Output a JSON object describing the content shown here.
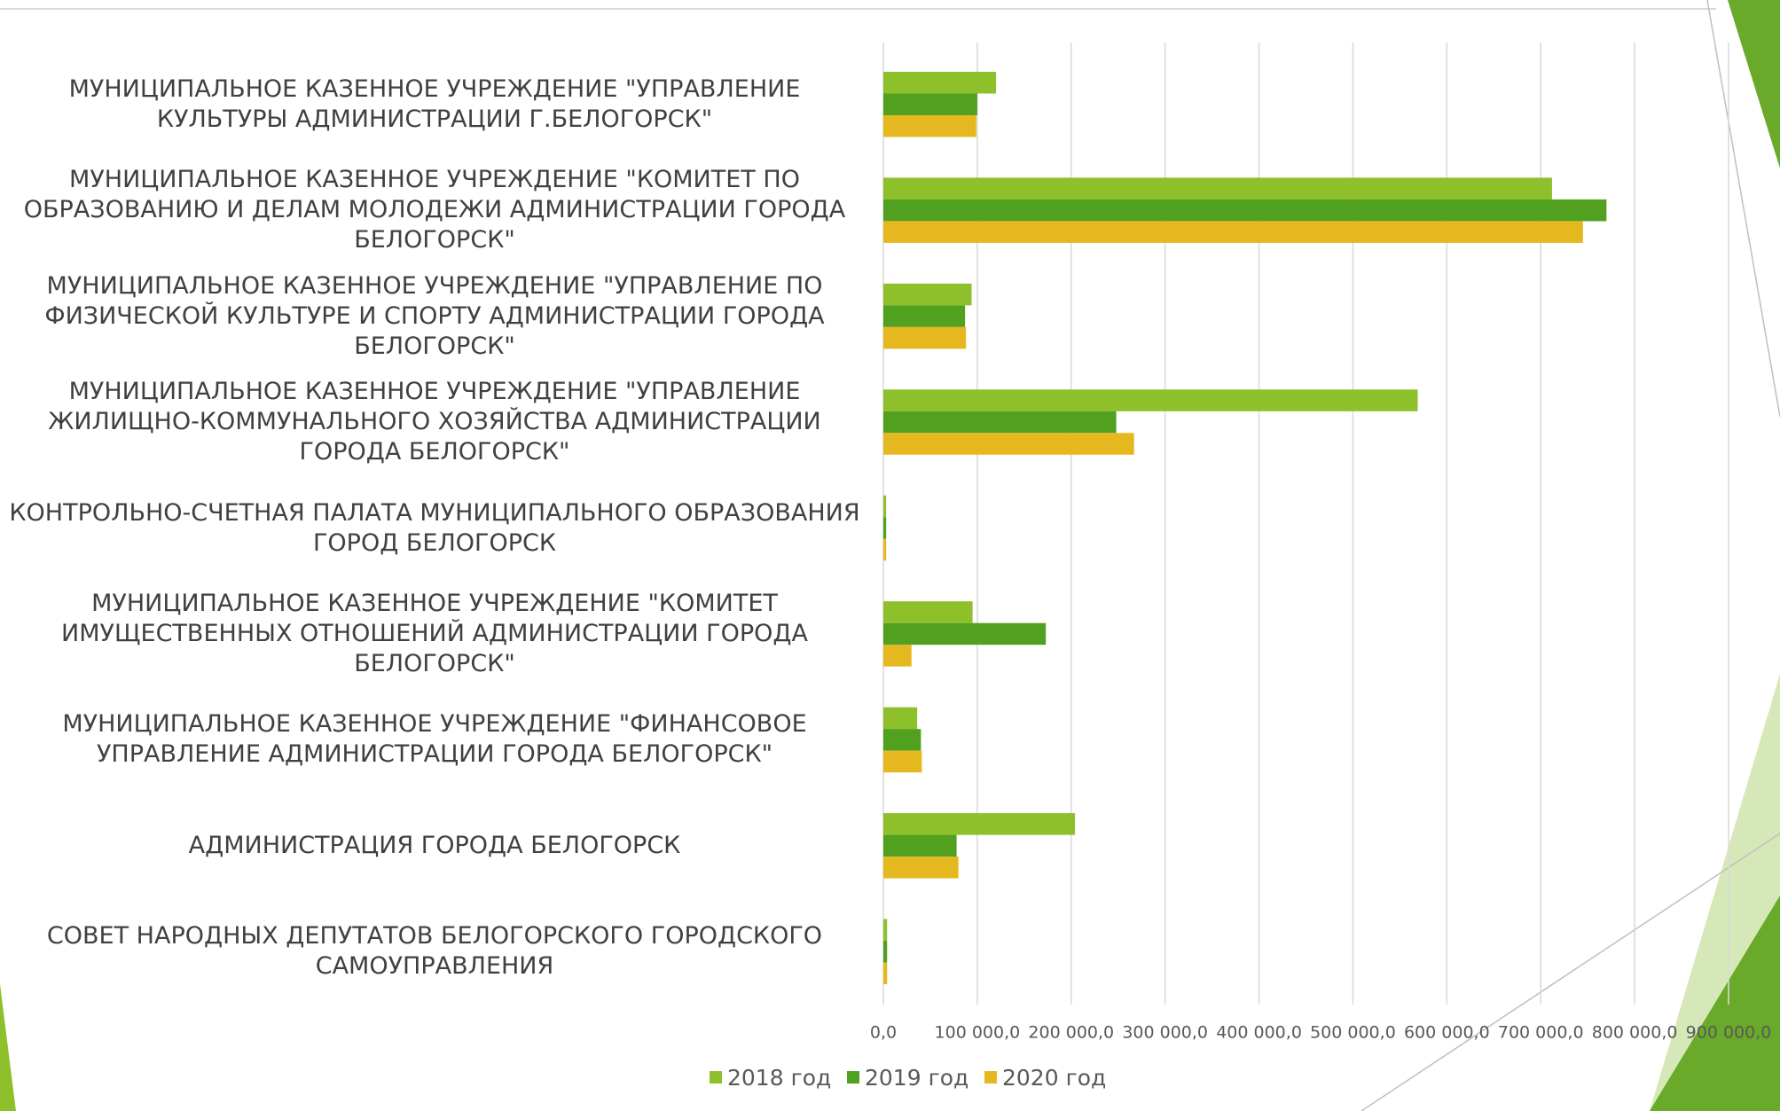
{
  "chart_data": {
    "type": "hbar",
    "categories": [
      "МУНИЦИПАЛЬНОЕ КАЗЕННОЕ УЧРЕЖДЕНИЕ \"УПРАВЛЕНИЕ КУЛЬТУРЫ АДМИНИСТРАЦИИ Г.БЕЛОГОРСК\"",
      "МУНИЦИПАЛЬНОЕ КАЗЕННОЕ УЧРЕЖДЕНИЕ \"КОМИТЕТ ПО ОБРАЗОВАНИЮ И ДЕЛАМ МОЛОДЕЖИ АДМИНИСТРАЦИИ ГОРОДА БЕЛОГОРСК\"",
      "МУНИЦИПАЛЬНОЕ КАЗЕННОЕ УЧРЕЖДЕНИЕ \"УПРАВЛЕНИЕ ПО ФИЗИЧЕСКОЙ КУЛЬТУРЕ И СПОРТУ  АДМИНИСТРАЦИИ ГОРОДА БЕЛОГОРСК\"",
      "МУНИЦИПАЛЬНОЕ КАЗЕННОЕ УЧРЕЖДЕНИЕ \"УПРАВЛЕНИЕ ЖИЛИЩНО-КОММУНАЛЬНОГО ХОЗЯЙСТВА АДМИНИСТРАЦИИ ГОРОДА БЕЛОГОРСК\"",
      "КОНТРОЛЬНО-СЧЕТНАЯ ПАЛАТА МУНИЦИПАЛЬНОГО ОБРАЗОВАНИЯ ГОРОД БЕЛОГОРСК",
      "МУНИЦИПАЛЬНОЕ КАЗЕННОЕ УЧРЕЖДЕНИЕ \"КОМИТЕТ ИМУЩЕСТВЕННЫХ ОТНОШЕНИЙ АДМИНИСТРАЦИИ ГОРОДА БЕЛОГОРСК\"",
      "МУНИЦИПАЛЬНОЕ КАЗЕННОЕ УЧРЕЖДЕНИЕ \"ФИНАНСОВОЕ УПРАВЛЕНИЕ АДМИНИСТРАЦИИ ГОРОДА БЕЛОГОРСК\"",
      "АДМИНИСТРАЦИЯ ГОРОДА БЕЛОГОРСК",
      "СОВЕТ НАРОДНЫХ ДЕПУТАТОВ БЕЛОГОРСКОГО ГОРОДСКОГО САМОУПРАВЛЕНИЯ"
    ],
    "series": [
      {
        "name": "2018 год",
        "color": "#8dc02a",
        "values": [
          120000,
          712000,
          94000,
          569000,
          3000,
          95000,
          36000,
          204000,
          4000
        ]
      },
      {
        "name": "2019 год",
        "color": "#52a020",
        "values": [
          100000,
          770000,
          87000,
          248000,
          3000,
          173000,
          40000,
          78000,
          4000
        ]
      },
      {
        "name": "2020 год",
        "color": "#e6b820",
        "values": [
          99000,
          745000,
          88000,
          267000,
          3000,
          30000,
          41000,
          80000,
          4000
        ]
      }
    ],
    "xlim": [
      0,
      900000
    ],
    "xticks": [
      {
        "value": 0,
        "label": "0,0"
      },
      {
        "value": 100000,
        "label": "100 000,0"
      },
      {
        "value": 200000,
        "label": "200 000,0"
      },
      {
        "value": 300000,
        "label": "300 000,0"
      },
      {
        "value": 400000,
        "label": "400 000,0"
      },
      {
        "value": 500000,
        "label": "500 000,0"
      },
      {
        "value": 600000,
        "label": "600 000,0"
      },
      {
        "value": 700000,
        "label": "700 000,0"
      },
      {
        "value": 800000,
        "label": "800 000,0"
      },
      {
        "value": 900000,
        "label": "900 000,0"
      }
    ],
    "grid": true,
    "legend": "bottom"
  }
}
